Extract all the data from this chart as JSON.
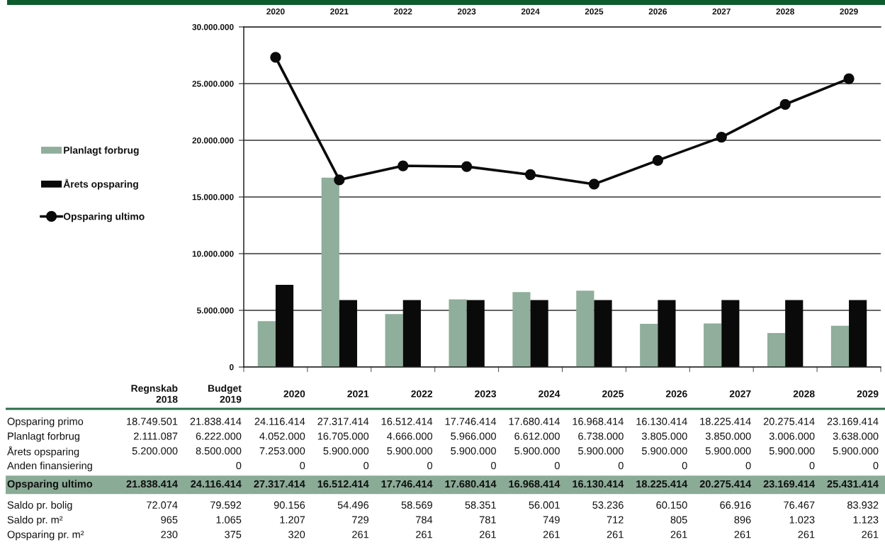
{
  "chart_data": [
    {
      "type": "bar",
      "categories": [
        "2020",
        "2021",
        "2022",
        "2023",
        "2024",
        "2025",
        "2026",
        "2027",
        "2028",
        "2029"
      ],
      "series": [
        {
          "name": "Planlagt forbrug",
          "color": "#8fae9b",
          "values": [
            4052000,
            16705000,
            4666000,
            5966000,
            6612000,
            6738000,
            3805000,
            3850000,
            3006000,
            3638000
          ]
        },
        {
          "name": "Årets opsparing",
          "color": "#0a0a0a",
          "values": [
            7253000,
            5900000,
            5900000,
            5900000,
            5900000,
            5900000,
            5900000,
            5900000,
            5900000,
            5900000
          ]
        },
        {
          "name": "Opsparing ultimo",
          "type": "line",
          "color": "#0a0a0a",
          "marker": "circle",
          "line_style": "solid",
          "values": [
            27317414,
            16512414,
            17746414,
            17680414,
            16968414,
            16130414,
            18225414,
            20275414,
            23169414,
            25431414
          ]
        }
      ],
      "ylim": [
        0,
        30000000
      ],
      "yticks": [
        0,
        {
          "value": 5000000,
          "label": "5.000.000"
        },
        {
          "value": 10000000,
          "label": "10.000.000"
        },
        {
          "value": 15000000,
          "label": "15.000.000"
        },
        {
          "value": 20000000,
          "label": "20.000.000"
        },
        {
          "value": 25000000,
          "label": "25.000.000"
        },
        {
          "value": 30000000,
          "label": "30.000.000"
        }
      ],
      "grid": "y",
      "legend": "left"
    },
    {
      "type": "heatmap",
      "categories": [
        "Regnskab 2018",
        "Budget 2019",
        "2020",
        "2021",
        "2022",
        "2023",
        "2024",
        "2025",
        "2026",
        "2027",
        "2028",
        "2029"
      ],
      "y_categories": [
        "Opsparing primo",
        "Planlagt forbrug",
        "Årets opsparing",
        "Anden finansiering",
        "Opsparing ultimo",
        "Saldo pr. bolig",
        "Saldo pr. m²",
        "Opsparing pr. m²"
      ],
      "cells": [
        [
          18749501,
          21838414,
          24116414,
          27317414,
          16512414,
          17746414,
          17680414,
          16968414,
          16130414,
          18225414,
          20275414,
          23169414
        ],
        [
          2111087,
          6222000,
          4052000,
          16705000,
          4666000,
          5966000,
          6612000,
          6738000,
          3805000,
          3850000,
          3006000,
          3638000
        ],
        [
          5200000,
          8500000,
          7253000,
          5900000,
          5900000,
          5900000,
          5900000,
          5900000,
          5900000,
          5900000,
          5900000,
          5900000
        ],
        [
          null,
          0,
          0,
          0,
          0,
          0,
          0,
          0,
          0,
          0,
          0,
          0
        ],
        [
          21838414,
          24116414,
          27317414,
          16512414,
          17746414,
          17680414,
          16968414,
          16130414,
          18225414,
          20275414,
          23169414,
          25431414
        ],
        [
          72074,
          79592,
          90156,
          54496,
          58569,
          58351,
          56001,
          53236,
          60150,
          66916,
          76467,
          83932
        ],
        [
          965,
          1065,
          1207,
          729,
          784,
          781,
          749,
          712,
          805,
          896,
          1023,
          1123
        ],
        [
          230,
          375,
          320,
          261,
          261,
          261,
          261,
          261,
          261,
          261,
          261,
          261
        ]
      ],
      "cell_labels": [
        [
          "18.749.501",
          "21.838.414",
          "24.116.414",
          "27.317.414",
          "16.512.414",
          "17.746.414",
          "17.680.414",
          "16.968.414",
          "16.130.414",
          "18.225.414",
          "20.275.414",
          "23.169.414"
        ],
        [
          "2.111.087",
          "6.222.000",
          "4.052.000",
          "16.705.000",
          "4.666.000",
          "5.966.000",
          "6.612.000",
          "6.738.000",
          "3.805.000",
          "3.850.000",
          "3.006.000",
          "3.638.000"
        ],
        [
          "5.200.000",
          "8.500.000",
          "7.253.000",
          "5.900.000",
          "5.900.000",
          "5.900.000",
          "5.900.000",
          "5.900.000",
          "5.900.000",
          "5.900.000",
          "5.900.000",
          "5.900.000"
        ],
        [
          null,
          "0",
          "0",
          "0",
          "0",
          "0",
          "0",
          "0",
          "0",
          "0",
          "0",
          "0"
        ],
        [
          "21.838.414",
          "24.116.414",
          "27.317.414",
          "16.512.414",
          "17.746.414",
          "17.680.414",
          "16.968.414",
          "16.130.414",
          "18.225.414",
          "20.275.414",
          "23.169.414",
          "25.431.414"
        ],
        [
          "72.074",
          "79.592",
          "90.156",
          "54.496",
          "58.569",
          "58.351",
          "56.001",
          "53.236",
          "60.150",
          "66.916",
          "76.467",
          "83.932"
        ],
        [
          "965",
          "1.065",
          "1.207",
          "729",
          "784",
          "781",
          "749",
          "712",
          "805",
          "896",
          "1.023",
          "1.123"
        ],
        [
          "230",
          "375",
          "320",
          "261",
          "261",
          "261",
          "261",
          "261",
          "261",
          "261",
          "261",
          "261"
        ]
      ],
      "bands": [
        {
          "axis": "y",
          "from": "Opsparing ultimo",
          "to": "Opsparing ultimo",
          "color": "#8aab96"
        }
      ]
    }
  ]
}
